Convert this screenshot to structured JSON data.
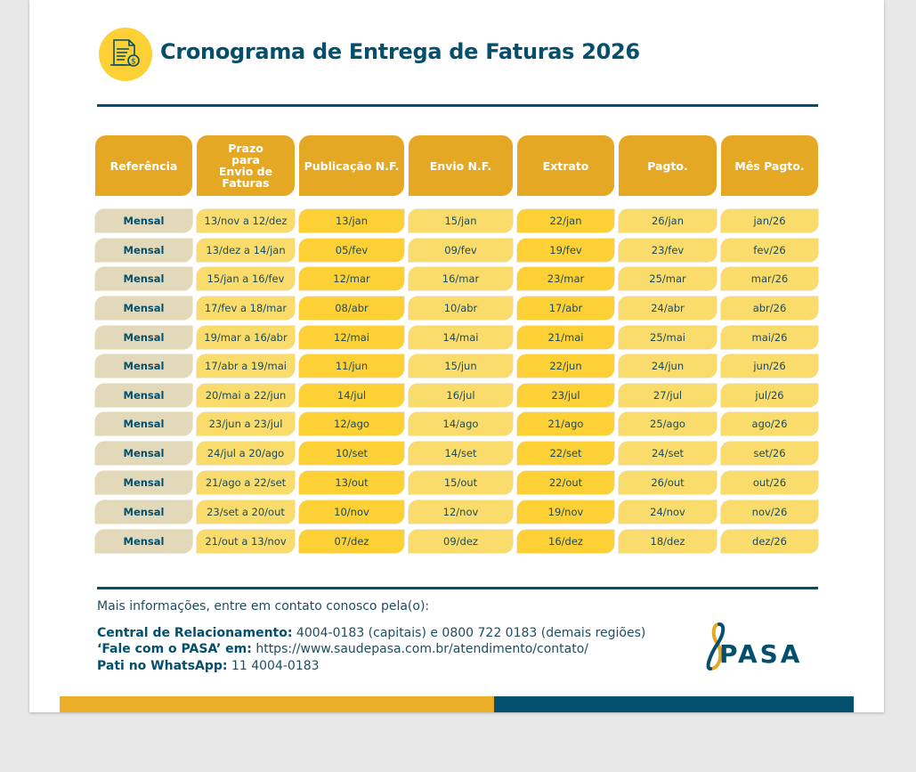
{
  "title": "Cronograma de Entrega de Faturas 2026",
  "title_icon": "invoice-dollar-icon",
  "colors": {
    "navy": "#044f6b",
    "header": "#e5a824",
    "cell_light": "#f9dc6c",
    "cell_dark": "#fdd135",
    "ref": "#e2d9bb"
  },
  "table": {
    "headers": [
      "Referência",
      "Prazo para Envio de Faturas",
      "Publicação N.F.",
      "Envio N.F.",
      "Extrato",
      "Pagto.",
      "Mês Pagto."
    ],
    "rows": [
      [
        "Mensal",
        "13/nov a 12/dez",
        "13/jan",
        "15/jan",
        "22/jan",
        "26/jan",
        "jan/26"
      ],
      [
        "Mensal",
        "13/dez a 14/jan",
        "05/fev",
        "09/fev",
        "19/fev",
        "23/fev",
        "fev/26"
      ],
      [
        "Mensal",
        "15/jan a 16/fev",
        "12/mar",
        "16/mar",
        "23/mar",
        "25/mar",
        "mar/26"
      ],
      [
        "Mensal",
        "17/fev a 18/mar",
        "08/abr",
        "10/abr",
        "17/abr",
        "24/abr",
        "abr/26"
      ],
      [
        "Mensal",
        "19/mar a 16/abr",
        "12/mai",
        "14/mai",
        "21/mai",
        "25/mai",
        "mai/26"
      ],
      [
        "Mensal",
        "17/abr a 19/mai",
        "11/jun",
        "15/jun",
        "22/jun",
        "24/jun",
        "jun/26"
      ],
      [
        "Mensal",
        "20/mai a 22/jun",
        "14/jul",
        "16/jul",
        "23/jul",
        "27/jul",
        "jul/26"
      ],
      [
        "Mensal",
        "23/jun a 23/jul",
        "12/ago",
        "14/ago",
        "21/ago",
        "25/ago",
        "ago/26"
      ],
      [
        "Mensal",
        "24/jul a 20/ago",
        "10/set",
        "14/set",
        "22/set",
        "24/set",
        "set/26"
      ],
      [
        "Mensal",
        "21/ago a 22/set",
        "13/out",
        "15/out",
        "22/out",
        "26/out",
        "out/26"
      ],
      [
        "Mensal",
        "23/set a 20/out",
        "10/nov",
        "12/nov",
        "19/nov",
        "24/nov",
        "nov/26"
      ],
      [
        "Mensal",
        "21/out a 13/nov",
        "07/dez",
        "09/dez",
        "16/dez",
        "18/dez",
        "dez/26"
      ]
    ]
  },
  "footer": {
    "intro": "Mais informações, entre em contato conosco pela(o):",
    "central_label": "Central de Relacionamento:",
    "central_value": "4004-0183 (capitais) e 0800 722 0183 (demais regiões)",
    "fale_label": "‘Fale com o PASA’ em:",
    "fale_value": "https://www.saudepasa.com.br/atendimento/contato/",
    "whatsapp_label": "Pati no WhatsApp:",
    "whatsapp_value": "11 4004-0183",
    "logo_text": "PASA"
  }
}
